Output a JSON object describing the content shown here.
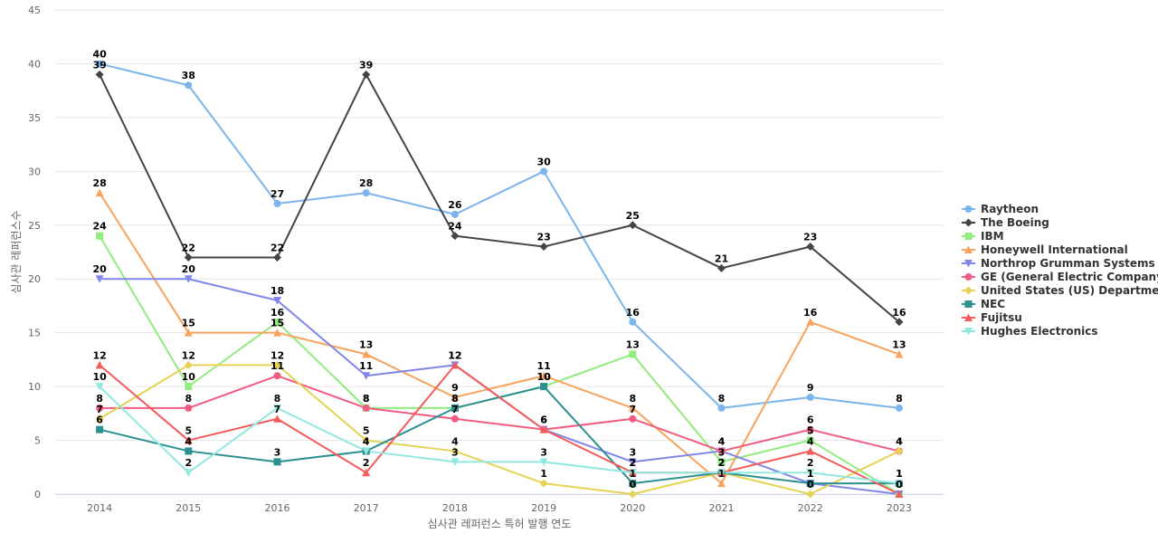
{
  "chart_data": {
    "type": "line",
    "title": "",
    "xlabel": "심사관 레퍼런스 특허 발행 연도",
    "ylabel": "심사관 레퍼런스수",
    "x": [
      "2014",
      "2015",
      "2016",
      "2017",
      "2018",
      "2019",
      "2020",
      "2021",
      "2022",
      "2023"
    ],
    "ylim": [
      0,
      45
    ],
    "yticks": [
      0,
      5,
      10,
      15,
      20,
      25,
      30,
      35,
      40,
      45
    ],
    "grid": true,
    "legend_position": "right",
    "series": [
      {
        "name": "Raytheon",
        "color": "#7cb5ec",
        "marker": "circle",
        "values": [
          40,
          38,
          27,
          28,
          26,
          30,
          16,
          8,
          9,
          8
        ]
      },
      {
        "name": "The Boeing",
        "color": "#434348",
        "marker": "diamond",
        "values": [
          39,
          22,
          22,
          39,
          24,
          23,
          25,
          21,
          23,
          16
        ]
      },
      {
        "name": "IBM",
        "color": "#90ed7d",
        "marker": "square",
        "values": [
          24,
          10,
          16,
          8,
          8,
          10,
          13,
          3,
          5,
          0
        ]
      },
      {
        "name": "Honeywell International",
        "color": "#f7a35c",
        "marker": "triangle",
        "values": [
          28,
          15,
          15,
          13,
          9,
          11,
          8,
          1,
          16,
          13
        ]
      },
      {
        "name": "Northrop Grumman Systems",
        "color": "#8085e9",
        "marker": "triangle-down",
        "values": [
          20,
          20,
          18,
          11,
          12,
          6,
          3,
          4,
          1,
          0
        ]
      },
      {
        "name": "GE (General Electric Company)",
        "color": "#f15c80",
        "marker": "circle",
        "values": [
          8,
          8,
          11,
          8,
          7,
          6,
          7,
          4,
          6,
          4
        ]
      },
      {
        "name": "United States (US) Departme...",
        "color": "#e4d354",
        "marker": "diamond",
        "values": [
          7,
          12,
          12,
          5,
          4,
          1,
          0,
          2,
          0,
          4
        ]
      },
      {
        "name": "NEC",
        "color": "#2b908f",
        "marker": "square",
        "values": [
          6,
          4,
          3,
          4,
          8,
          10,
          1,
          2,
          1,
          1
        ]
      },
      {
        "name": "Fujitsu",
        "color": "#f45b5b",
        "marker": "triangle",
        "values": [
          12,
          5,
          7,
          2,
          12,
          6,
          2,
          2,
          4,
          0
        ]
      },
      {
        "name": "Hughes Electronics",
        "color": "#91e8e1",
        "marker": "triangle-down",
        "values": [
          10,
          2,
          8,
          4,
          3,
          3,
          2,
          2,
          2,
          1
        ]
      }
    ]
  }
}
